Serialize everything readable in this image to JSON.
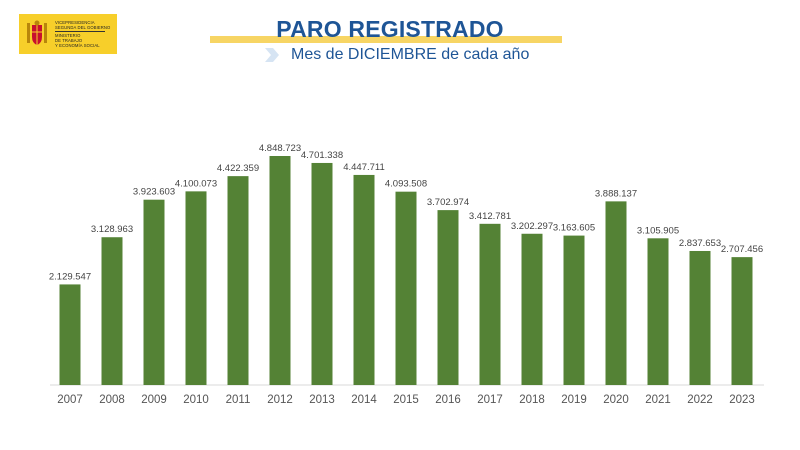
{
  "logo": {
    "line1": "VICEPRESIDENCIA",
    "line2": "SEGUNDA DEL GOBIERNO",
    "line3": "MINISTERIO",
    "line4": "DE TRABAJO",
    "line5": "Y ECONOMÍA SOCIAL"
  },
  "header": {
    "title": "PARO REGISTRADO",
    "subtitle": "Mes de DICIEMBRE de cada año"
  },
  "colors": {
    "bar": "#548235",
    "title": "#1e5596",
    "accent": "#f7d564"
  },
  "chart_data": {
    "type": "bar",
    "categories": [
      "2007",
      "2008",
      "2009",
      "2010",
      "2011",
      "2012",
      "2013",
      "2014",
      "2015",
      "2016",
      "2017",
      "2018",
      "2019",
      "2020",
      "2021",
      "2022",
      "2023"
    ],
    "values": [
      2129547,
      3128963,
      3923603,
      4100073,
      4422359,
      4848723,
      4701338,
      4447711,
      4093508,
      3702974,
      3412781,
      3202297,
      3163605,
      3888137,
      3105905,
      2837653,
      2707456
    ],
    "labels": [
      "2.129.547",
      "3.128.963",
      "3.923.603",
      "4.100.073",
      "4.422.359",
      "4.848.723",
      "4.701.338",
      "4.447.711",
      "4.093.508",
      "3.702.974",
      "3.412.781",
      "3.202.297",
      "3.163.605",
      "3.888.137",
      "3.105.905",
      "2.837.653",
      "2.707.456"
    ],
    "grid": false,
    "legend": "none"
  }
}
